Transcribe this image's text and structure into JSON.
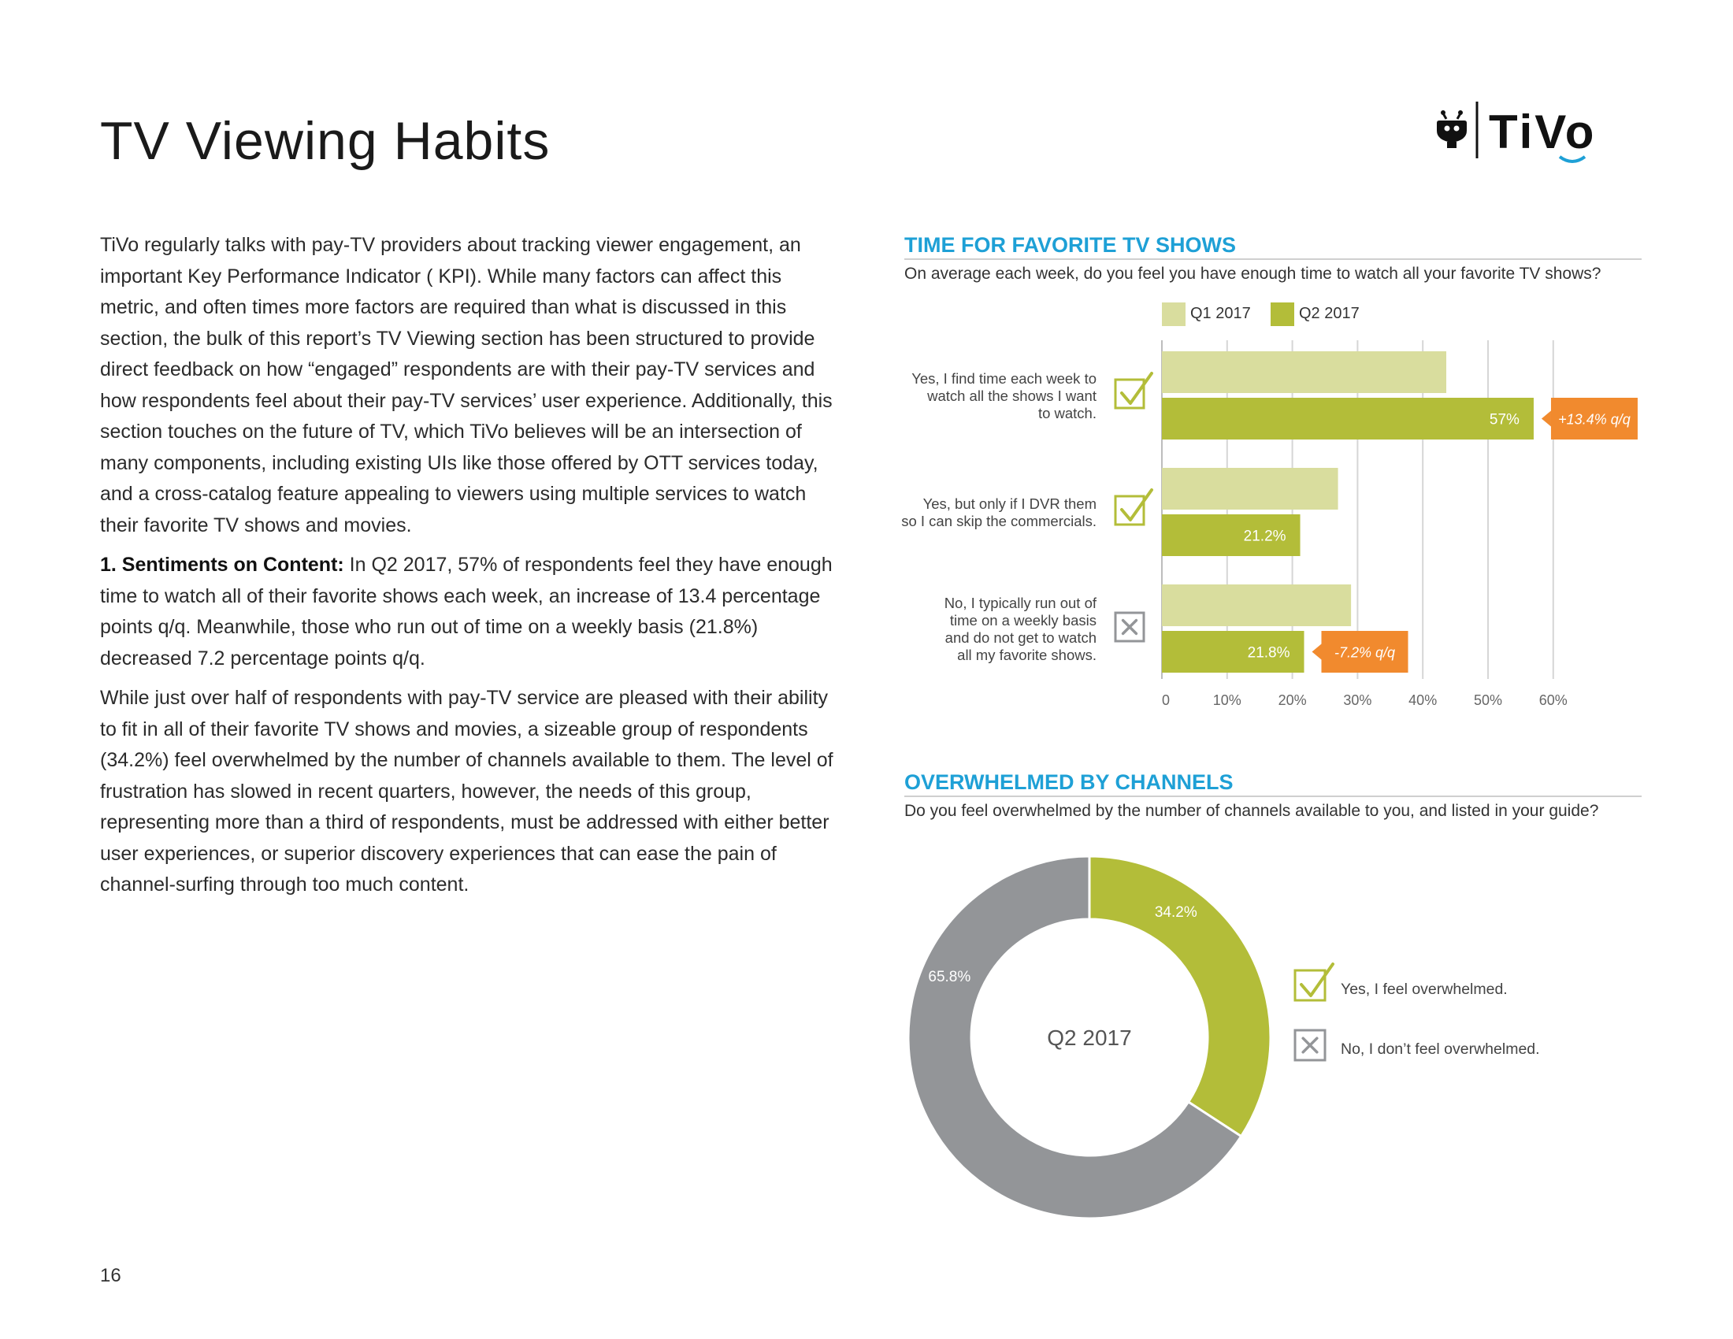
{
  "page": {
    "title": "TV Viewing Habits",
    "page_number": "16",
    "logo_text": "TiVo",
    "paragraphs": [
      "TiVo regularly talks with pay-TV providers about tracking viewer engagement, an important Key Performance Indicator ( KPI). While many factors can affect this metric, and often times more factors are required than what is discussed in this section, the bulk of this report’s TV Viewing section has been structured to provide direct feedback on how “engaged” respondents are with their pay-TV services and how respondents feel about their pay-TV services’ user experience. Additionally, this section touches on the future of TV, which TiVo believes will be an intersection of many components, including existing UIs like  those offered by OTT services today, and a cross-catalog feature appealing to viewers using multiple services to watch their favorite TV shows and movies.",
      "While just over half of respondents with pay-TV service are pleased with their ability to fit in all of their favorite TV shows and movies, a sizeable group of respondents (34.2%) feel overwhelmed by the number of channels available to them. The level of frustration has slowed in recent quarters, however, the needs of this group, representing more than a third of respondents, must be addressed with either better user experiences, or superior discovery experiences that can ease the pain of channel-surfing through too much content."
    ],
    "sentiments": {
      "label": "1.  Sentiments on Content:",
      "text": " In Q2 2017, 57% of respondents feel they have enough time to watch all of their favorite shows each week, an increase of 13.4 percentage points q/q. Meanwhile, those who run out of time on a weekly basis (21.8%) decreased 7.2 percentage points q/q."
    }
  },
  "colors": {
    "q1": "#d9dd9e",
    "q2": "#b3bd39",
    "orange": "#f18a2e",
    "gray": "#939598",
    "blue": "#1ea0d6",
    "grid": "#d6d6d6"
  },
  "chart_data": [
    {
      "type": "bar",
      "orientation": "horizontal",
      "title": "TIME FOR FAVORITE TV SHOWS",
      "subtitle": "On average each week, do you feel you have enough time to watch all your favorite TV shows?",
      "categories": [
        "Yes, I find time each week to watch all the shows I want to watch.",
        "Yes, but only if I DVR them so I can skip the commercials.",
        "No, I typically run out of time on a weekly basis and do not get to watch all my favorite shows."
      ],
      "category_lines": [
        [
          "Yes, I find time each week to",
          "watch all the shows I want",
          "to watch."
        ],
        [
          "Yes, but only if I DVR them",
          "so I can skip the commercials."
        ],
        [
          "No, I typically run out of",
          "time on a weekly basis",
          "and do not get to watch",
          "all my favorite shows."
        ]
      ],
      "category_icons": [
        "check-icon",
        "check-icon",
        "x-icon"
      ],
      "series": [
        {
          "name": "Q1 2017",
          "values": [
            43.6,
            27.0,
            29.0
          ],
          "labels": [
            "",
            "",
            ""
          ]
        },
        {
          "name": "Q2 2017",
          "values": [
            57.0,
            21.2,
            21.8
          ],
          "labels": [
            "57%",
            "21.2%",
            "21.8%"
          ]
        }
      ],
      "changes": [
        "+13.4% q/q",
        "",
        "-7.2% q/q"
      ],
      "xlim": [
        0,
        60
      ],
      "xticks": [
        0,
        10,
        20,
        30,
        40,
        50,
        60
      ],
      "xtick_labels": [
        "0",
        "10%",
        "20%",
        "30%",
        "40%",
        "50%",
        "60%"
      ],
      "grid": true
    },
    {
      "type": "pie",
      "style": "donut",
      "title": "OVERWHELMED BY CHANNELS",
      "subtitle": "Do you feel overwhelmed by the number of channels available to you, and listed in your guide?",
      "center_label": "Q2 2017",
      "slices": [
        {
          "label": "Yes, I feel overwhelmed.",
          "value": 34.2,
          "display": "34.2%",
          "icon": "check-icon"
        },
        {
          "label": "No, I don’t feel overwhelmed.",
          "value": 65.8,
          "display": "65.8%",
          "icon": "x-icon"
        }
      ]
    }
  ]
}
